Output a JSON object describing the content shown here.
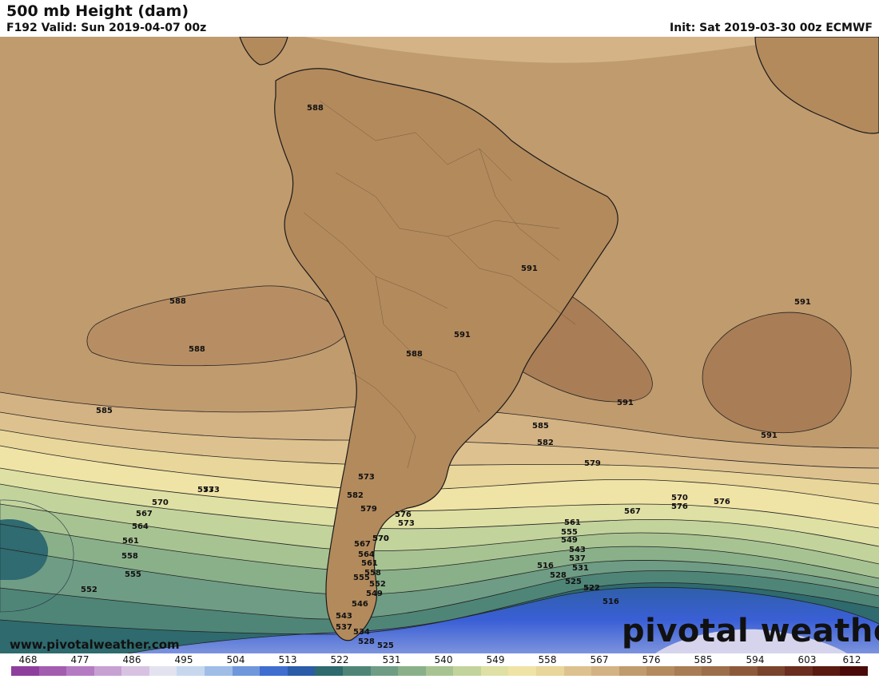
{
  "header": {
    "title": "500 mb Height (dam)",
    "valid": "F192 Valid: Sun 2019-04-07 00z",
    "init": "Init: Sat 2019-03-30 00z ECMWF"
  },
  "map": {
    "contour_labels": [
      "588",
      "588",
      "588",
      "588",
      "591",
      "591",
      "591",
      "591",
      "591",
      "585",
      "585",
      "582",
      "579",
      "576",
      "573",
      "570",
      "567",
      "564",
      "561",
      "558",
      "555",
      "552",
      "549",
      "546",
      "543",
      "537",
      "534",
      "528",
      "525",
      "522",
      "516",
      "573",
      "570",
      "567",
      "564",
      "561",
      "558",
      "555",
      "552",
      "573",
      "570",
      "576",
      "567",
      "561",
      "555",
      "549",
      "543",
      "537",
      "531",
      "528",
      "525",
      "522",
      "516",
      "582",
      "579",
      "576",
      "573",
      "570"
    ],
    "colors": {
      "ocean_high": "#bf9b6e",
      "land_high": "#b48b5e",
      "center_591": "#a87c54",
      "green_low": "#5f8d7d",
      "blue_low": "#3c5ecc"
    }
  },
  "footer": {
    "website": "www.pivotalweather.com",
    "logo": "pivotal weather"
  },
  "colorbar": {
    "ticks": [
      "468",
      "477",
      "486",
      "495",
      "504",
      "513",
      "522",
      "531",
      "540",
      "549",
      "558",
      "567",
      "576",
      "585",
      "594",
      "603",
      "612"
    ]
  }
}
